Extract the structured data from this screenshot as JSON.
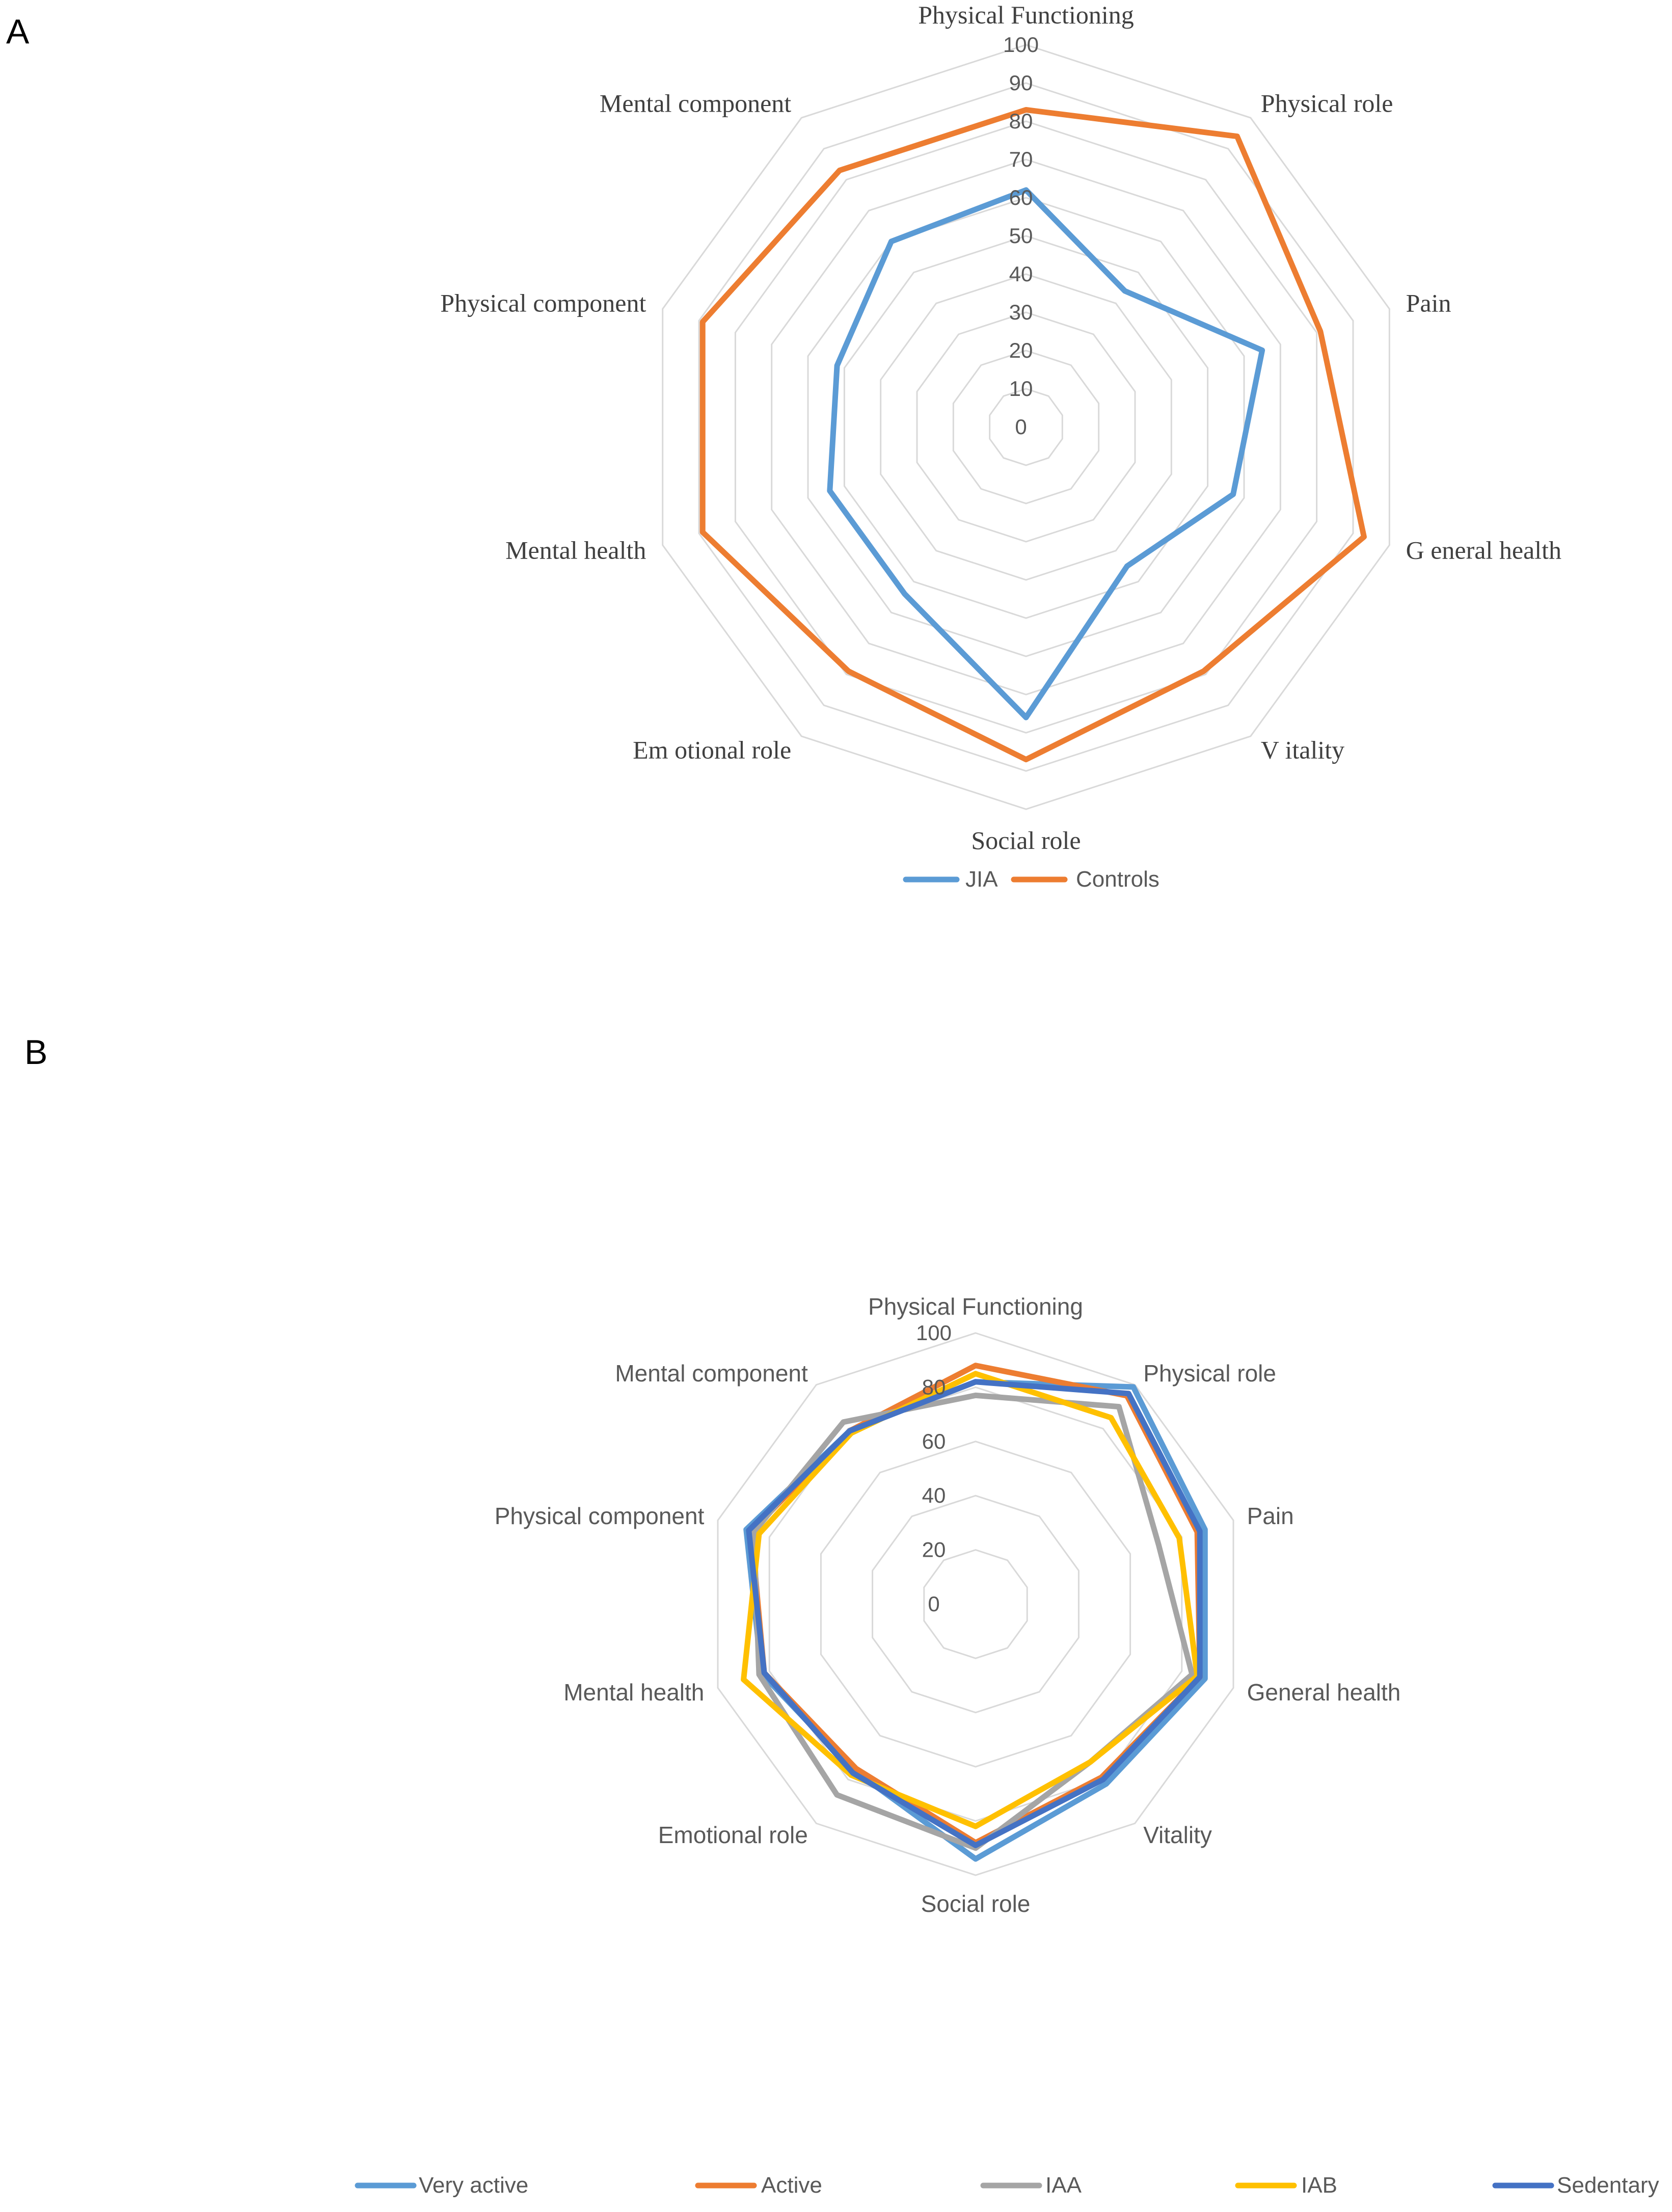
{
  "chart_data": [
    {
      "panel": "A",
      "type": "radar",
      "categories": [
        "Physical Functioning",
        "Physical role",
        "Pain",
        "General health",
        "Vitality",
        "Social role",
        "Emotional role",
        "Mental health",
        "Physical component",
        "Mental component"
      ],
      "category_labels": [
        "Physical Functioning",
        "Physical role",
        "Pain",
        "G eneral health",
        "V itality",
        "Social role",
        "Em otional role",
        "Mental health",
        "Physical component",
        "Mental component"
      ],
      "rlim": [
        0,
        100
      ],
      "ticks": [
        "0",
        "10",
        "20",
        "30",
        "40",
        "50",
        "60",
        "70",
        "80",
        "90",
        "100"
      ],
      "tick_values": [
        0,
        10,
        20,
        30,
        40,
        50,
        60,
        70,
        80,
        90,
        100
      ],
      "series": [
        {
          "name": "JIA",
          "color": "#5b9bd5",
          "values": [
            62,
            44,
            65,
            57,
            45,
            76,
            54,
            54,
            52,
            60
          ]
        },
        {
          "name": "Controls",
          "color": "#ed7d31",
          "values": [
            83,
            94,
            81,
            93,
            79,
            87,
            79,
            89,
            89,
            83
          ]
        }
      ],
      "legend": "bottom",
      "grid": true
    },
    {
      "panel": "B",
      "type": "radar",
      "categories": [
        "Physical Functioning",
        "Physical role",
        "Pain",
        "General health",
        "Vitality",
        "Social role",
        "Emotional role",
        "Mental health",
        "Physical component",
        "Mental component"
      ],
      "category_labels": [
        "Physical Functioning",
        "Physical role",
        "Pain",
        "General health",
        "Vitality",
        "Social role",
        "Emotional role",
        "Mental health",
        "Physical component",
        "Mental component"
      ],
      "rlim": [
        0,
        100
      ],
      "ticks": [
        "0",
        "20",
        "40",
        "60",
        "80",
        "100"
      ],
      "tick_values": [
        0,
        20,
        40,
        60,
        80,
        100
      ],
      "series": [
        {
          "name": "Very active",
          "color": "#5b9bd5",
          "values": [
            82,
            99,
            89,
            89,
            82,
            94,
            76,
            83,
            89,
            79
          ]
        },
        {
          "name": "Active",
          "color": "#ed7d31",
          "values": [
            88,
            95,
            86,
            87,
            79,
            88,
            75,
            82,
            87,
            79
          ]
        },
        {
          "name": "IAA",
          "color": "#a5a5a5",
          "values": [
            77,
            90,
            71,
            84,
            72,
            90,
            87,
            84,
            86,
            83
          ]
        },
        {
          "name": "IAB",
          "color": "#ffc000",
          "values": [
            85,
            85,
            79,
            86,
            72,
            82,
            78,
            90,
            84,
            78
          ]
        },
        {
          "name": "Sedentary",
          "color": "#4472c4",
          "values": [
            82,
            96,
            87,
            87,
            80,
            89,
            77,
            82,
            88,
            79
          ]
        }
      ],
      "legend": "bottom",
      "grid": true
    }
  ]
}
